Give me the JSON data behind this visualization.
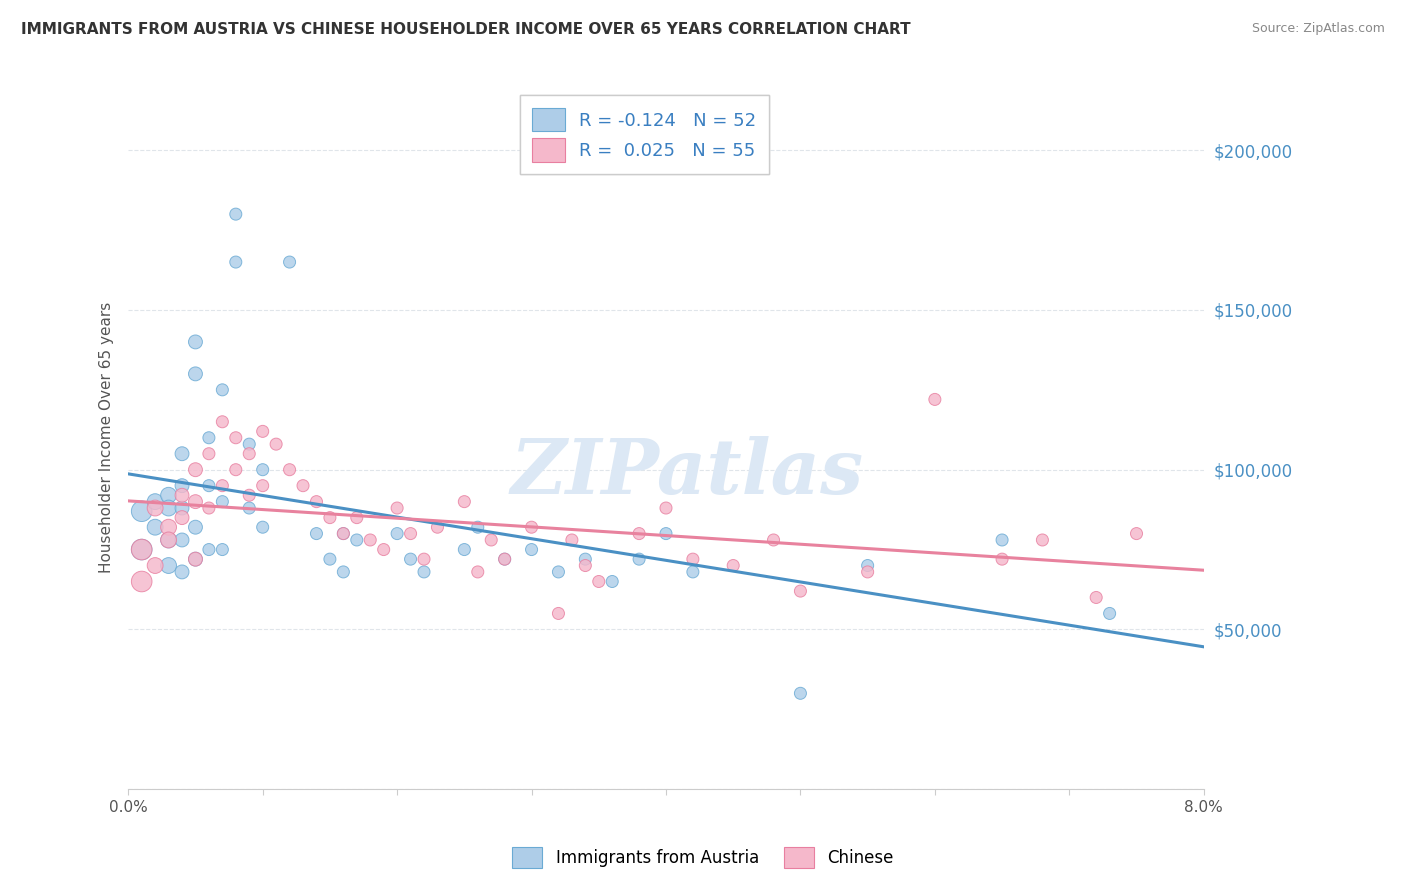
{
  "title": "IMMIGRANTS FROM AUSTRIA VS CHINESE HOUSEHOLDER INCOME OVER 65 YEARS CORRELATION CHART",
  "source": "Source: ZipAtlas.com",
  "ylabel": "Householder Income Over 65 years",
  "xlim": [
    0.0,
    0.08
  ],
  "ylim": [
    0,
    220000
  ],
  "legend1_label": "R = -0.124   N = 52",
  "legend2_label": "R =  0.025   N = 55",
  "legend_bottom1": "Immigrants from Austria",
  "legend_bottom2": "Chinese",
  "austria_color": "#aecde8",
  "chinese_color": "#f5b8cb",
  "austria_edge_color": "#6aaad4",
  "chinese_edge_color": "#e87fa0",
  "austria_line_color": "#4a90c4",
  "chinese_line_color": "#e8829e",
  "watermark_text": "ZIPatlas",
  "watermark_color": "#dce8f5",
  "background_color": "#ffffff",
  "grid_color": "#e0e5ea",
  "austria_x": [
    0.001,
    0.001,
    0.002,
    0.002,
    0.003,
    0.003,
    0.003,
    0.003,
    0.004,
    0.004,
    0.004,
    0.004,
    0.004,
    0.005,
    0.005,
    0.005,
    0.005,
    0.006,
    0.006,
    0.006,
    0.007,
    0.007,
    0.007,
    0.008,
    0.008,
    0.009,
    0.009,
    0.01,
    0.01,
    0.012,
    0.014,
    0.015,
    0.016,
    0.016,
    0.017,
    0.02,
    0.021,
    0.022,
    0.025,
    0.026,
    0.028,
    0.03,
    0.032,
    0.034,
    0.036,
    0.038,
    0.04,
    0.042,
    0.05,
    0.055,
    0.065,
    0.073
  ],
  "austria_y": [
    87000,
    75000,
    90000,
    82000,
    92000,
    88000,
    78000,
    70000,
    95000,
    105000,
    88000,
    78000,
    68000,
    130000,
    140000,
    82000,
    72000,
    110000,
    95000,
    75000,
    125000,
    90000,
    75000,
    165000,
    180000,
    108000,
    88000,
    100000,
    82000,
    165000,
    80000,
    72000,
    80000,
    68000,
    78000,
    80000,
    72000,
    68000,
    75000,
    82000,
    72000,
    75000,
    68000,
    72000,
    65000,
    72000,
    80000,
    68000,
    30000,
    70000,
    78000,
    55000
  ],
  "chinese_x": [
    0.001,
    0.001,
    0.002,
    0.002,
    0.003,
    0.003,
    0.004,
    0.004,
    0.005,
    0.005,
    0.005,
    0.006,
    0.006,
    0.007,
    0.007,
    0.008,
    0.008,
    0.009,
    0.009,
    0.01,
    0.01,
    0.011,
    0.012,
    0.013,
    0.014,
    0.015,
    0.016,
    0.017,
    0.018,
    0.019,
    0.02,
    0.021,
    0.022,
    0.023,
    0.025,
    0.026,
    0.027,
    0.028,
    0.03,
    0.032,
    0.033,
    0.034,
    0.035,
    0.038,
    0.04,
    0.042,
    0.045,
    0.048,
    0.05,
    0.055,
    0.06,
    0.065,
    0.068,
    0.072,
    0.075
  ],
  "chinese_y": [
    75000,
    65000,
    88000,
    70000,
    82000,
    78000,
    92000,
    85000,
    100000,
    90000,
    72000,
    105000,
    88000,
    115000,
    95000,
    110000,
    100000,
    105000,
    92000,
    112000,
    95000,
    108000,
    100000,
    95000,
    90000,
    85000,
    80000,
    85000,
    78000,
    75000,
    88000,
    80000,
    72000,
    82000,
    90000,
    68000,
    78000,
    72000,
    82000,
    55000,
    78000,
    70000,
    65000,
    80000,
    88000,
    72000,
    70000,
    78000,
    62000,
    68000,
    122000,
    72000,
    78000,
    60000,
    80000
  ]
}
